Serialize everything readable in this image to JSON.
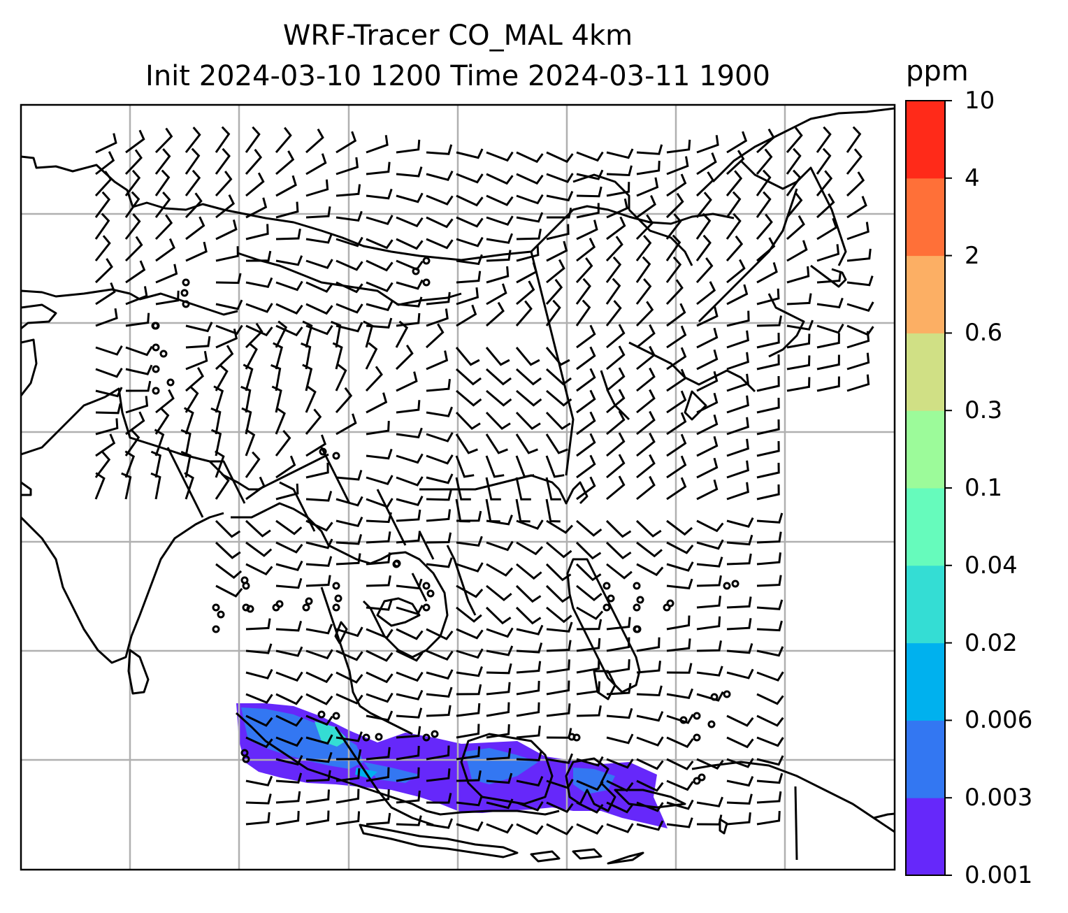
{
  "title_line1": "WRF-Tracer CO_MAL 4km",
  "title_line2": "Init 2024-03-10 1200 Time 2024-03-11 1900",
  "colorbar": {
    "unit": "ppm",
    "levels": [
      "0.001",
      "0.003",
      "0.006",
      "0.02",
      "0.04",
      "0.1",
      "0.3",
      "0.6",
      "2",
      "4",
      "10"
    ],
    "colors": [
      "#6628fa",
      "#3377f2",
      "#00b1ee",
      "#34ddd4",
      "#66fbbc",
      "#9cfb9a",
      "#d0e085",
      "#fcaf64",
      "#ff7038",
      "#ff2a19"
    ]
  },
  "map": {
    "frame_color": "#000000",
    "grid_color": "#b0b0b0",
    "coastline_color": "#000000",
    "wind_barb_color": "#000000"
  }
}
